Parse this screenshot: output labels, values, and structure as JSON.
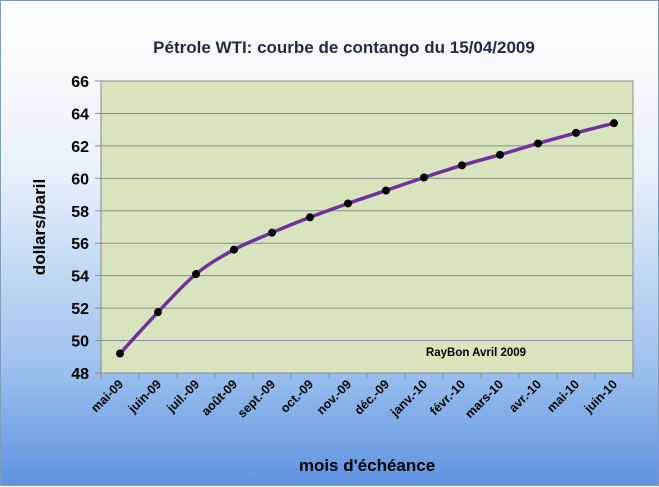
{
  "chart_data": {
    "type": "line",
    "title": "Pétrole WTI: courbe de contango du 15/04/2009",
    "xlabel": "mois d'échéance",
    "ylabel": "dollars/baril",
    "categories": [
      "mai-09",
      "juin-09",
      "juil.-09",
      "août-09",
      "sept.-09",
      "oct.-09",
      "nov.-09",
      "déc.-09",
      "janv.-10",
      "févr.-10",
      "mars-10",
      "avr.-10",
      "mai-10",
      "juin-10"
    ],
    "series": [
      {
        "values": [
          49.2,
          51.75,
          54.1,
          55.6,
          56.65,
          57.6,
          58.45,
          59.25,
          60.05,
          60.8,
          61.45,
          62.15,
          62.8,
          63.4
        ]
      }
    ],
    "ylim": [
      48,
      66
    ],
    "yticks": [
      "48",
      "50",
      "52",
      "54",
      "56",
      "58",
      "60",
      "62",
      "64",
      "66"
    ],
    "grid": true,
    "legend": "none",
    "annotation": "RayBon Avril 2009",
    "colors": {
      "line": "#7030a0",
      "marker": "#000000",
      "plot_bg": "#d7e4bd",
      "grid": "#8c8c8c"
    }
  }
}
